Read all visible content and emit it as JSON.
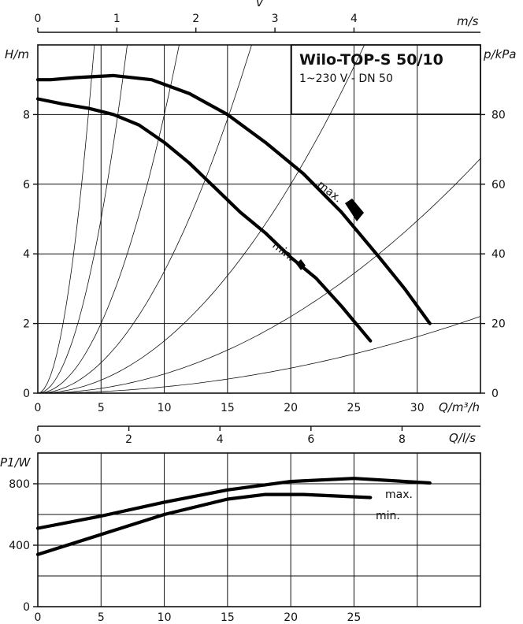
{
  "chart_data": [
    {
      "id": "head_curve",
      "type": "line",
      "title": "Wilo-TOP-S 50/10",
      "subtitle": "1~230 V - DN 50",
      "xlabel": "Q/m³/h",
      "ylabel": "H/m",
      "y2label": "p/kPa",
      "top_axis_label": "m/s",
      "top_axis_symbol": "v",
      "xlim": [
        0,
        35
      ],
      "ylim": [
        0,
        10
      ],
      "y2lim": [
        0,
        100
      ],
      "top_axis_lim": [
        0,
        5.6
      ],
      "x_ticks": [
        0,
        5,
        10,
        15,
        20,
        25,
        30
      ],
      "y_ticks": [
        0,
        2,
        4,
        6,
        8
      ],
      "y2_ticks": [
        0,
        20,
        40,
        60,
        80
      ],
      "top_ticks": [
        0,
        1,
        2,
        3,
        4
      ],
      "series": [
        {
          "name": "max.",
          "x": [
            0,
            1,
            3,
            6,
            9,
            12,
            15,
            18,
            21,
            24,
            27,
            29,
            31
          ],
          "y": [
            9.0,
            9.0,
            9.06,
            9.12,
            9.0,
            8.6,
            8.0,
            7.2,
            6.3,
            5.2,
            3.9,
            3.0,
            2.0
          ]
        },
        {
          "name": "min.",
          "x": [
            0,
            2,
            4,
            6,
            8,
            10,
            12,
            14,
            16,
            18,
            20,
            22,
            24,
            26.3
          ],
          "y": [
            8.45,
            8.3,
            8.18,
            8.0,
            7.7,
            7.2,
            6.6,
            5.9,
            5.2,
            4.6,
            3.9,
            3.3,
            2.5,
            1.5
          ]
        }
      ],
      "system_curve_coefficients": [
        0.5,
        0.2,
        0.08,
        0.035,
        0.015,
        0.0055,
        0.0018
      ]
    },
    {
      "id": "power_curve",
      "type": "line",
      "xlabel": "Q/m³/h",
      "ylabel": "P1/W",
      "top_axis_label": "Q/l/s",
      "xlim": [
        0,
        35
      ],
      "ylim": [
        0,
        1000
      ],
      "x_ticks": [
        0,
        5,
        10,
        15,
        20,
        25
      ],
      "y_ticks": [
        0,
        400,
        800
      ],
      "top_ticks": [
        0,
        2,
        4,
        6,
        8
      ],
      "series": [
        {
          "name": "max.",
          "x": [
            0,
            5,
            10,
            15,
            20,
            25,
            31
          ],
          "y": [
            510,
            590,
            680,
            760,
            815,
            835,
            805
          ]
        },
        {
          "name": "min.",
          "x": [
            0,
            5,
            10,
            15,
            18,
            21,
            26.3
          ],
          "y": [
            340,
            470,
            600,
            700,
            730,
            730,
            710
          ]
        }
      ]
    }
  ]
}
